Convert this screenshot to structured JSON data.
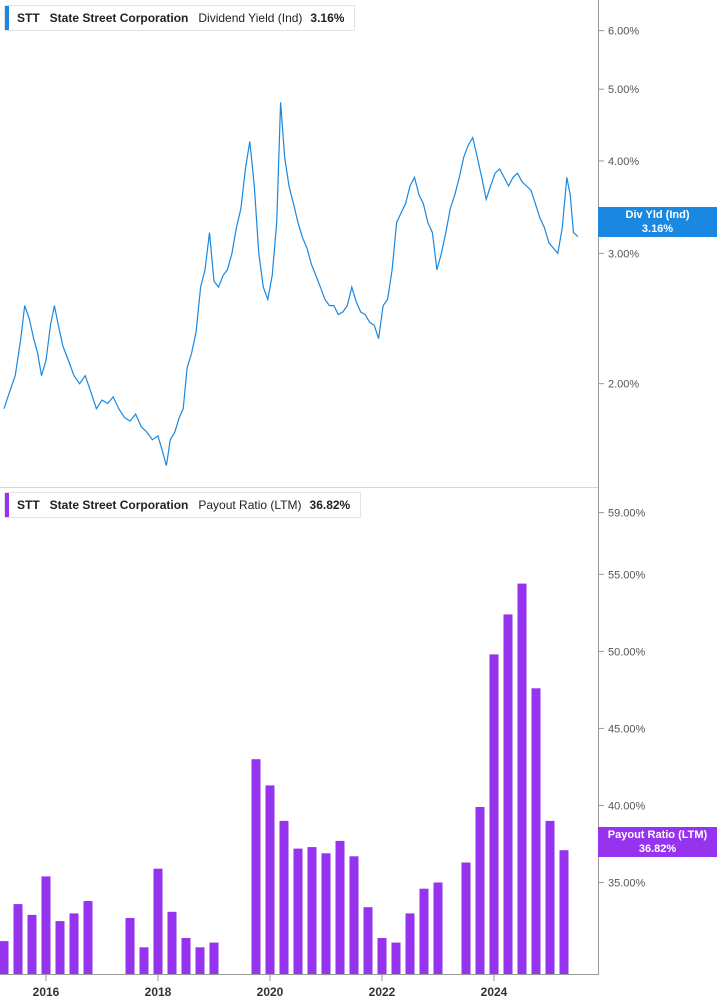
{
  "panels": [
    {
      "ticker": "STT",
      "company": "State Street Corporation",
      "metric": "Dividend Yield (Ind)",
      "value_label": "3.16%",
      "badge_title": "Div Yld (Ind)",
      "badge_value": "3.16%",
      "color": "#1a88e0"
    },
    {
      "ticker": "STT",
      "company": "State Street Corporation",
      "metric": "Payout Ratio (LTM)",
      "value_label": "36.82%",
      "badge_title": "Payout Ratio (LTM)",
      "badge_value": "36.82%",
      "color": "#9533ee"
    }
  ],
  "chart_data": [
    {
      "type": "line",
      "series": [
        {
          "name": "Dividend Yield (Ind)",
          "points": [
            [
              2015.25,
              1.85
            ],
            [
              2015.35,
              1.95
            ],
            [
              2015.45,
              2.05
            ],
            [
              2015.55,
              2.3
            ],
            [
              2015.62,
              2.55
            ],
            [
              2015.7,
              2.45
            ],
            [
              2015.78,
              2.3
            ],
            [
              2015.85,
              2.2
            ],
            [
              2015.92,
              2.05
            ],
            [
              2016.0,
              2.15
            ],
            [
              2016.08,
              2.4
            ],
            [
              2016.15,
              2.55
            ],
            [
              2016.22,
              2.4
            ],
            [
              2016.3,
              2.25
            ],
            [
              2016.4,
              2.15
            ],
            [
              2016.5,
              2.05
            ],
            [
              2016.6,
              2.0
            ],
            [
              2016.7,
              2.05
            ],
            [
              2016.8,
              1.95
            ],
            [
              2016.9,
              1.85
            ],
            [
              2017.0,
              1.9
            ],
            [
              2017.1,
              1.88
            ],
            [
              2017.2,
              1.92
            ],
            [
              2017.3,
              1.85
            ],
            [
              2017.4,
              1.8
            ],
            [
              2017.5,
              1.78
            ],
            [
              2017.6,
              1.82
            ],
            [
              2017.7,
              1.75
            ],
            [
              2017.8,
              1.72
            ],
            [
              2017.9,
              1.68
            ],
            [
              2018.0,
              1.7
            ],
            [
              2018.08,
              1.62
            ],
            [
              2018.15,
              1.55
            ],
            [
              2018.22,
              1.68
            ],
            [
              2018.3,
              1.72
            ],
            [
              2018.38,
              1.8
            ],
            [
              2018.45,
              1.85
            ],
            [
              2018.52,
              2.1
            ],
            [
              2018.6,
              2.2
            ],
            [
              2018.68,
              2.35
            ],
            [
              2018.76,
              2.7
            ],
            [
              2018.84,
              2.85
            ],
            [
              2018.92,
              3.2
            ],
            [
              2019.0,
              2.75
            ],
            [
              2019.08,
              2.7
            ],
            [
              2019.16,
              2.8
            ],
            [
              2019.24,
              2.85
            ],
            [
              2019.32,
              3.0
            ],
            [
              2019.4,
              3.25
            ],
            [
              2019.48,
              3.45
            ],
            [
              2019.56,
              3.9
            ],
            [
              2019.64,
              4.25
            ],
            [
              2019.72,
              3.7
            ],
            [
              2019.8,
              3.0
            ],
            [
              2019.88,
              2.7
            ],
            [
              2019.96,
              2.6
            ],
            [
              2020.04,
              2.8
            ],
            [
              2020.12,
              3.3
            ],
            [
              2020.19,
              4.8
            ],
            [
              2020.26,
              4.05
            ],
            [
              2020.34,
              3.7
            ],
            [
              2020.42,
              3.5
            ],
            [
              2020.5,
              3.3
            ],
            [
              2020.58,
              3.15
            ],
            [
              2020.66,
              3.05
            ],
            [
              2020.74,
              2.9
            ],
            [
              2020.82,
              2.8
            ],
            [
              2020.9,
              2.7
            ],
            [
              2020.98,
              2.6
            ],
            [
              2021.06,
              2.55
            ],
            [
              2021.14,
              2.55
            ],
            [
              2021.22,
              2.48
            ],
            [
              2021.3,
              2.5
            ],
            [
              2021.38,
              2.55
            ],
            [
              2021.46,
              2.7
            ],
            [
              2021.54,
              2.58
            ],
            [
              2021.62,
              2.5
            ],
            [
              2021.7,
              2.48
            ],
            [
              2021.78,
              2.42
            ],
            [
              2021.86,
              2.4
            ],
            [
              2021.94,
              2.3
            ],
            [
              2022.02,
              2.55
            ],
            [
              2022.1,
              2.6
            ],
            [
              2022.18,
              2.85
            ],
            [
              2022.26,
              3.3
            ],
            [
              2022.34,
              3.4
            ],
            [
              2022.42,
              3.5
            ],
            [
              2022.5,
              3.7
            ],
            [
              2022.58,
              3.8
            ],
            [
              2022.66,
              3.6
            ],
            [
              2022.74,
              3.5
            ],
            [
              2022.82,
              3.3
            ],
            [
              2022.9,
              3.2
            ],
            [
              2022.98,
              2.85
            ],
            [
              2023.06,
              3.0
            ],
            [
              2023.14,
              3.2
            ],
            [
              2023.22,
              3.45
            ],
            [
              2023.3,
              3.6
            ],
            [
              2023.38,
              3.8
            ],
            [
              2023.46,
              4.05
            ],
            [
              2023.54,
              4.2
            ],
            [
              2023.62,
              4.3
            ],
            [
              2023.7,
              4.05
            ],
            [
              2023.78,
              3.8
            ],
            [
              2023.86,
              3.55
            ],
            [
              2023.94,
              3.7
            ],
            [
              2024.02,
              3.85
            ],
            [
              2024.1,
              3.9
            ],
            [
              2024.18,
              3.8
            ],
            [
              2024.26,
              3.7
            ],
            [
              2024.34,
              3.8
            ],
            [
              2024.42,
              3.85
            ],
            [
              2024.5,
              3.75
            ],
            [
              2024.58,
              3.7
            ],
            [
              2024.66,
              3.65
            ],
            [
              2024.74,
              3.5
            ],
            [
              2024.82,
              3.35
            ],
            [
              2024.9,
              3.25
            ],
            [
              2024.98,
              3.1
            ],
            [
              2025.06,
              3.05
            ],
            [
              2025.14,
              3.0
            ],
            [
              2025.22,
              3.25
            ],
            [
              2025.3,
              3.8
            ],
            [
              2025.36,
              3.6
            ],
            [
              2025.42,
              3.2
            ],
            [
              2025.5,
              3.16
            ]
          ]
        }
      ],
      "y_scale": "log",
      "ylim": [
        1.45,
        6.6
      ],
      "yticks": [
        "6.00%",
        "5.00%",
        "4.00%",
        "3.00%",
        "2.00%"
      ]
    },
    {
      "type": "bar",
      "series": [
        {
          "name": "Payout Ratio (LTM)",
          "points": [
            [
              2015.25,
              31.2
            ],
            [
              2015.5,
              33.6
            ],
            [
              2015.75,
              32.9
            ],
            [
              2016.0,
              35.4
            ],
            [
              2016.25,
              32.5
            ],
            [
              2016.5,
              33.0
            ],
            [
              2016.75,
              33.8
            ],
            [
              2017.5,
              32.7
            ],
            [
              2017.75,
              30.8
            ],
            [
              2018.0,
              35.9
            ],
            [
              2018.25,
              33.1
            ],
            [
              2018.5,
              31.4
            ],
            [
              2018.75,
              30.8
            ],
            [
              2019.0,
              31.1
            ],
            [
              2019.75,
              43.0
            ],
            [
              2020.0,
              41.3
            ],
            [
              2020.25,
              39.0
            ],
            [
              2020.5,
              37.2
            ],
            [
              2020.75,
              37.3
            ],
            [
              2021.0,
              36.9
            ],
            [
              2021.25,
              37.7
            ],
            [
              2021.5,
              36.7
            ],
            [
              2021.75,
              33.4
            ],
            [
              2022.0,
              31.4
            ],
            [
              2022.25,
              31.1
            ],
            [
              2022.5,
              33.0
            ],
            [
              2022.75,
              34.6
            ],
            [
              2023.0,
              35.0
            ],
            [
              2023.5,
              36.3
            ],
            [
              2023.75,
              39.9
            ],
            [
              2024.0,
              49.8
            ],
            [
              2024.25,
              52.4
            ],
            [
              2024.5,
              54.4
            ],
            [
              2024.75,
              47.6
            ],
            [
              2025.0,
              39.0
            ],
            [
              2025.25,
              37.1
            ]
          ]
        }
      ],
      "ylim": [
        29.0,
        60.6
      ],
      "yticks": [
        "59.00%",
        "55.00%",
        "50.00%",
        "45.00%",
        "40.00%",
        "35.00%"
      ],
      "xticks": [
        "2016",
        "2018",
        "2020",
        "2022",
        "2024"
      ]
    }
  ]
}
